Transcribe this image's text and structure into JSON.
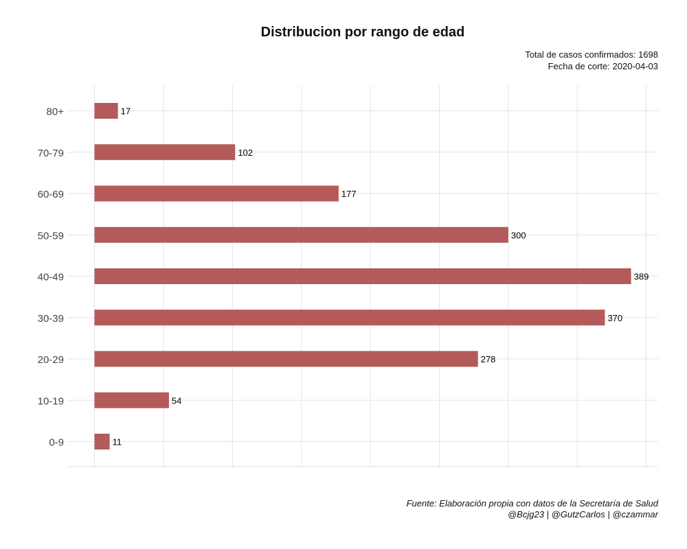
{
  "chart_data": {
    "type": "bar",
    "orientation": "horizontal",
    "title": "Distribucion por rango de edad",
    "subtitle": [
      "Total de casos confirmados: 1698",
      "Fecha de corte: 2020-04-03"
    ],
    "caption": [
      "Fuente: Elaboración propia con datos de la Secretaría de Salud",
      "@Bcjg23 | @GutzCarlos | @czammar"
    ],
    "categories": [
      "0-9",
      "10-19",
      "20-29",
      "30-39",
      "40-49",
      "50-59",
      "60-69",
      "70-79",
      "80+"
    ],
    "values": [
      11,
      54,
      278,
      370,
      389,
      300,
      177,
      102,
      17
    ],
    "xlabel": "",
    "ylabel": "",
    "xlim": [
      0,
      400
    ],
    "grid": true,
    "bar_color": "#b55a5a",
    "data_labels": true
  }
}
